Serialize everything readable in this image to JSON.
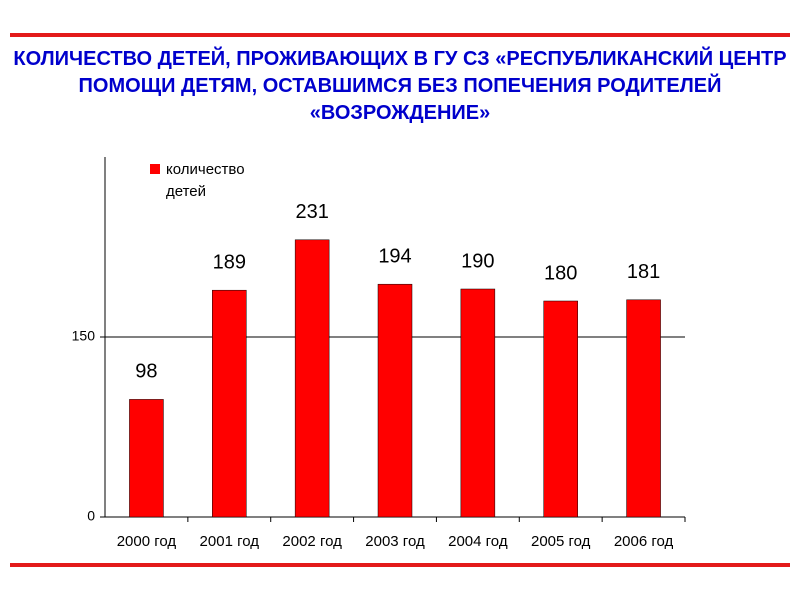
{
  "chart_data": {
    "type": "bar",
    "title": "КОЛИЧЕСТВО ДЕТЕЙ, ПРОЖИВАЮЩИХ В ГУ СЗ «РЕСПУБЛИКАНСКИЙ ЦЕНТР ПОМОЩИ ДЕТЯМ, ОСТАВШИМСЯ БЕЗ ПОПЕЧЕНИЯ РОДИТЕЛЕЙ «ВОЗРОЖДЕНИЕ»",
    "categories": [
      "2000 год",
      "2001 год",
      "2002 год",
      "2003 год",
      "2004 год",
      "2005 год",
      "2006 год"
    ],
    "series": [
      {
        "name": "количество детей",
        "color": "#ff0000",
        "values": [
          98,
          189,
          231,
          194,
          190,
          180,
          181
        ]
      }
    ],
    "ylim": [
      0,
      300
    ],
    "yticks": [
      0,
      150
    ],
    "grid": true,
    "legend": "top-left"
  }
}
